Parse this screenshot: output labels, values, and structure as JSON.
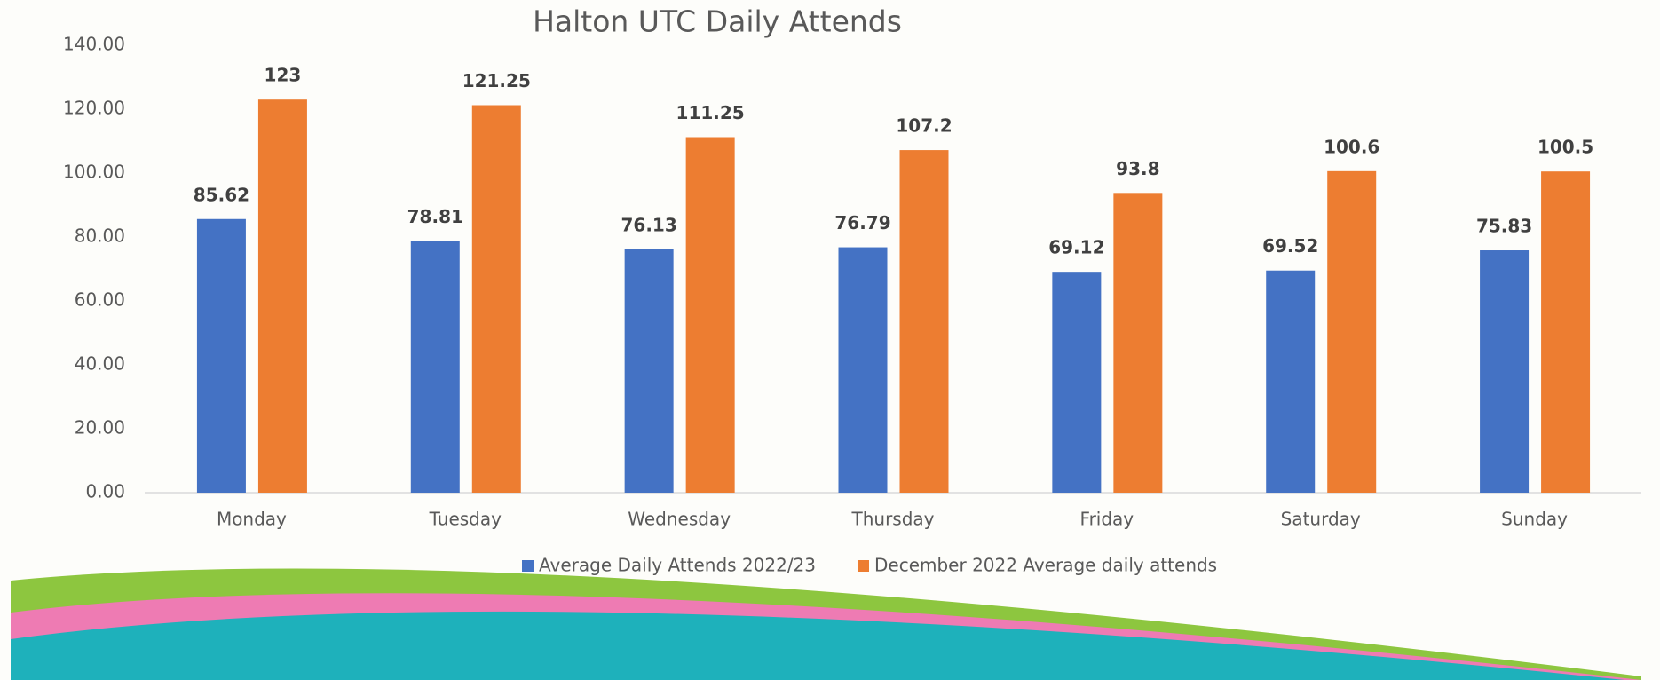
{
  "chart_data": {
    "type": "bar",
    "title": "Halton UTC Daily Attends",
    "categories": [
      "Monday",
      "Tuesday",
      "Wednesday",
      "Thursday",
      "Friday",
      "Saturday",
      "Sunday"
    ],
    "series": [
      {
        "name": "Average Daily Attends 2022/23",
        "color": "#4472c4",
        "values": [
          85.62,
          78.81,
          76.13,
          76.79,
          69.12,
          69.52,
          75.83
        ]
      },
      {
        "name": "December 2022 Average daily attends",
        "color": "#ed7d31",
        "values": [
          123,
          121.25,
          111.25,
          107.2,
          93.8,
          100.6,
          100.5
        ]
      }
    ],
    "ylim": [
      0,
      140
    ],
    "yticks": [
      {
        "value": 0,
        "label": "0.00"
      },
      {
        "value": 20,
        "label": "20.00"
      },
      {
        "value": 40,
        "label": "40.00"
      },
      {
        "value": 60,
        "label": "60.00"
      },
      {
        "value": 80,
        "label": "80.00"
      },
      {
        "value": 100,
        "label": "100.00"
      },
      {
        "value": 120,
        "label": "120.00"
      },
      {
        "value": 140,
        "label": "140.00"
      }
    ],
    "grid": false,
    "legend": "bottom"
  }
}
